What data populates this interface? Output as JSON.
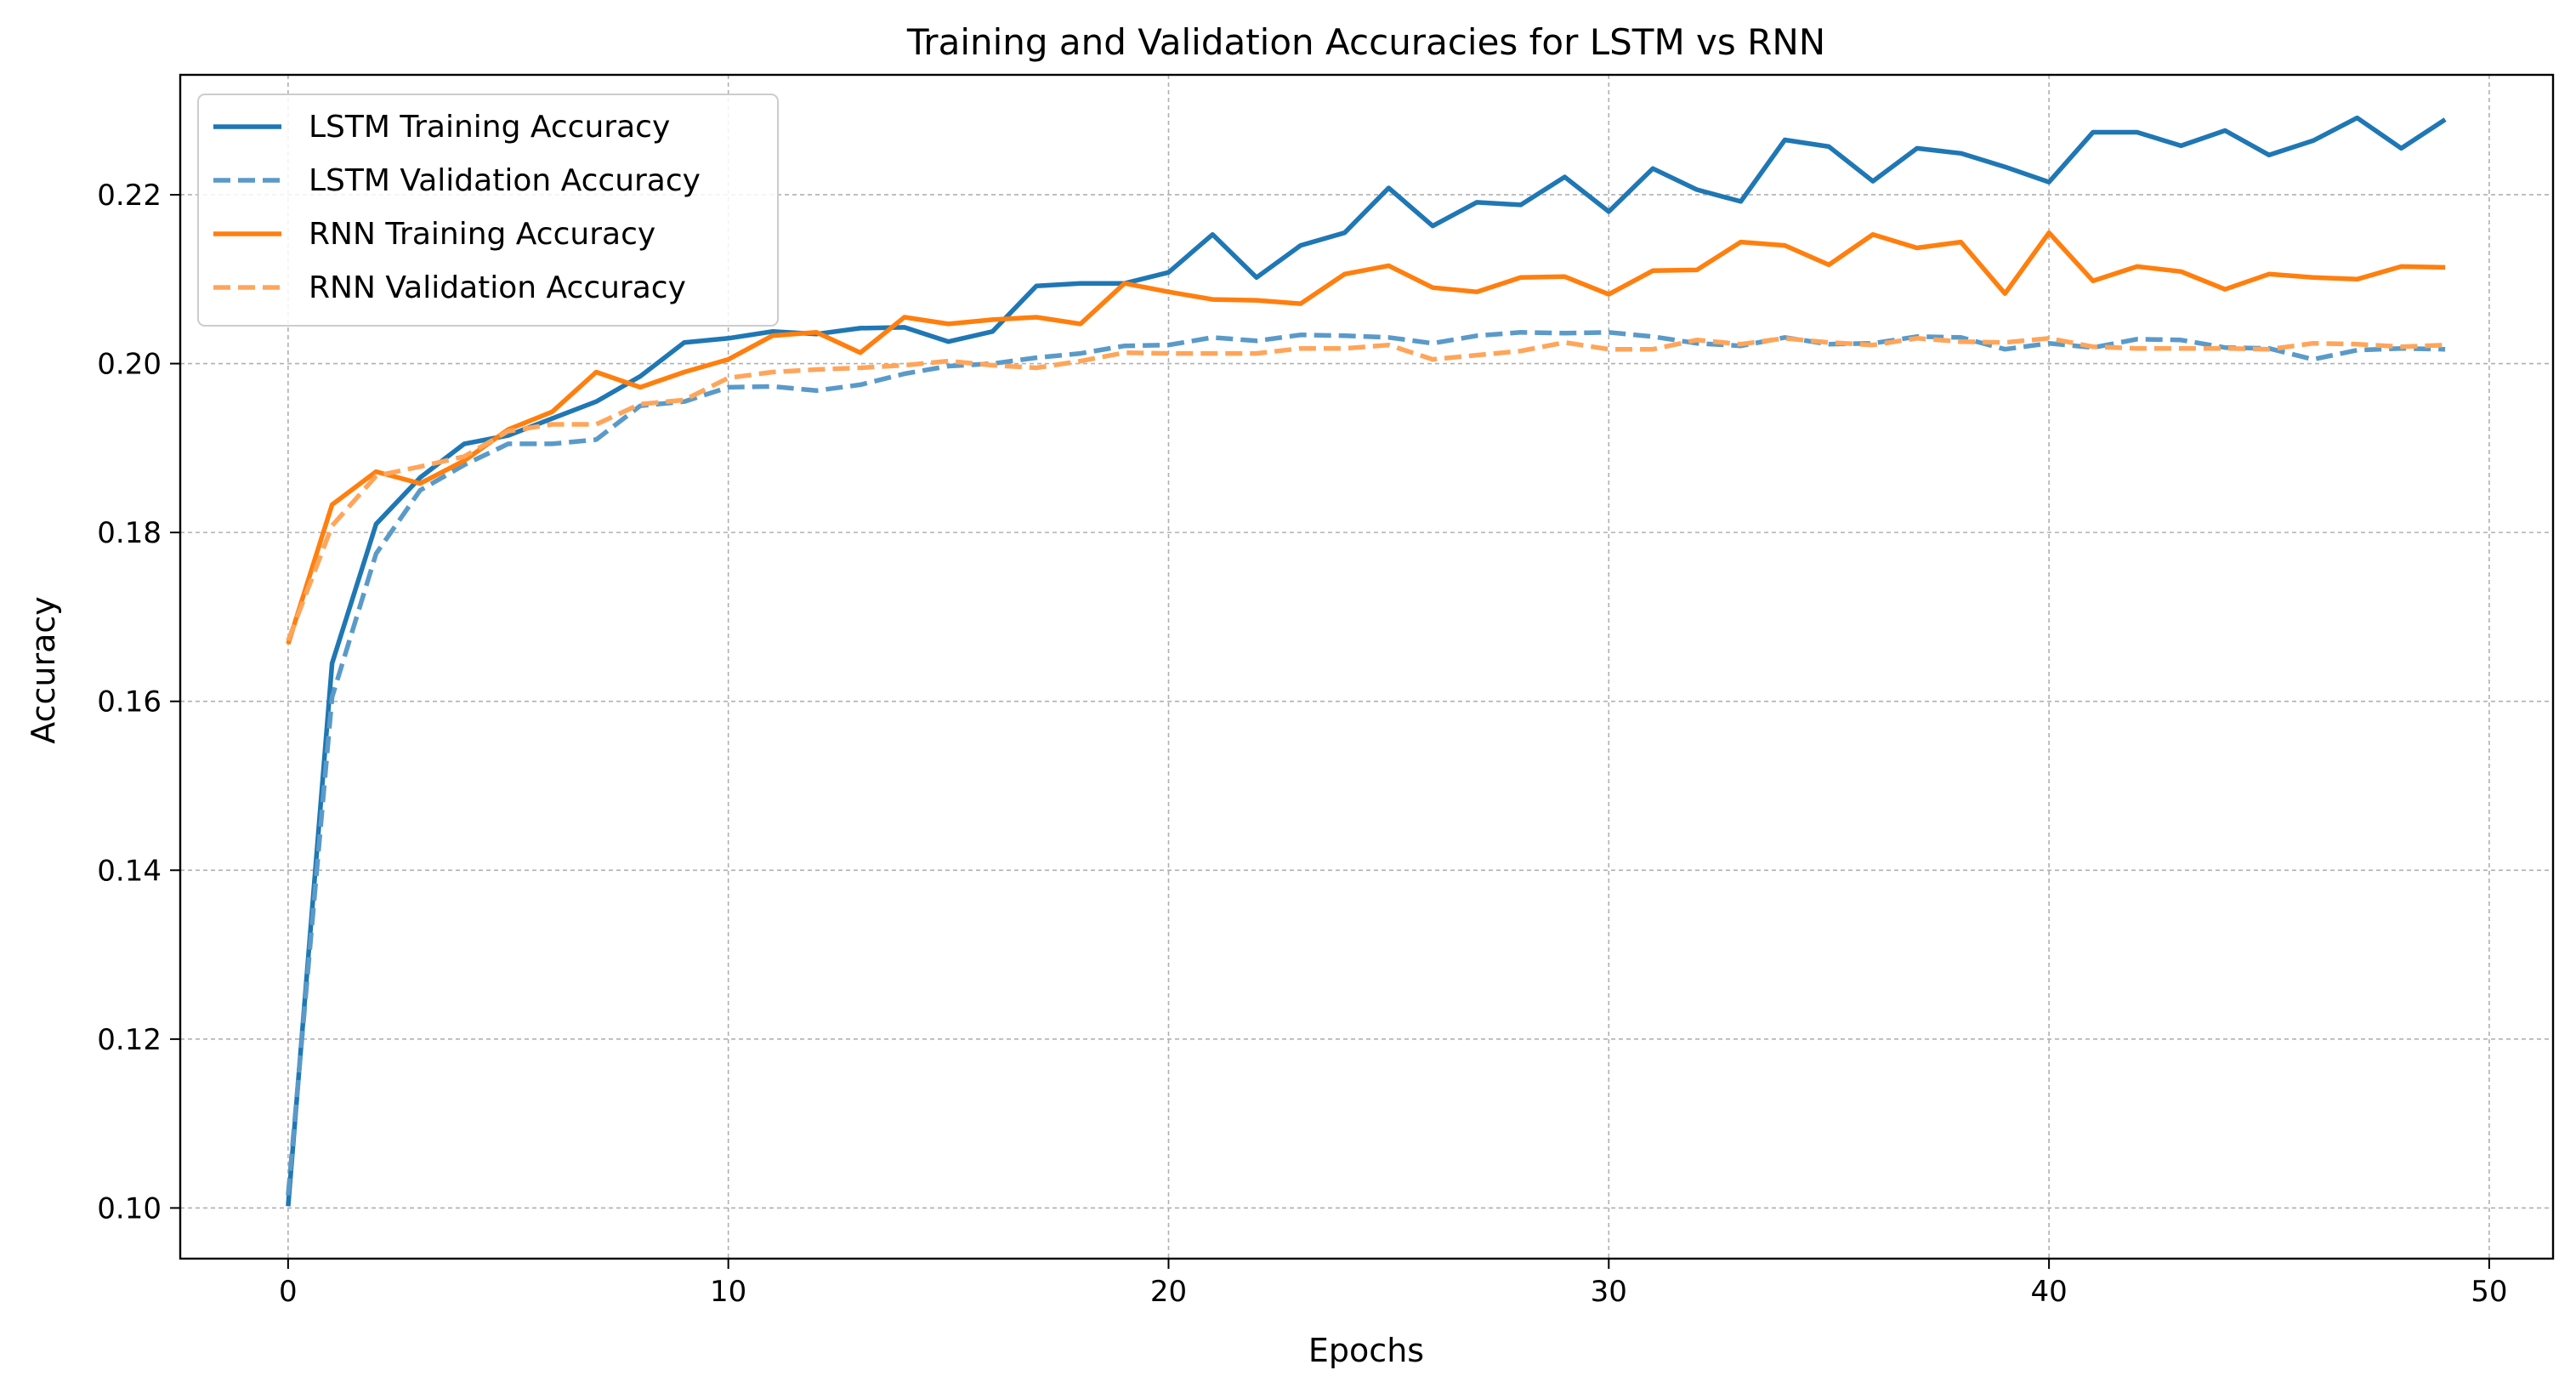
{
  "chart_data": {
    "type": "line",
    "title": "Training and Validation Accuracies for LSTM vs RNN",
    "xlabel": "Epochs",
    "ylabel": "Accuracy",
    "xlim": [
      -2.45,
      51.45
    ],
    "ylim": [
      0.094,
      0.2342
    ],
    "x_ticks": [
      0,
      10,
      20,
      30,
      40,
      50
    ],
    "y_ticks": [
      0.1,
      0.12,
      0.14,
      0.16,
      0.18,
      0.2,
      0.22
    ],
    "x_tick_labels": [
      "0",
      "10",
      "20",
      "30",
      "40",
      "50"
    ],
    "y_tick_labels": [
      "0.10",
      "0.12",
      "0.14",
      "0.16",
      "0.18",
      "0.20",
      "0.22"
    ],
    "grid": true,
    "legend_position": "top-left",
    "x": [
      0,
      1,
      2,
      3,
      4,
      5,
      6,
      7,
      8,
      9,
      10,
      11,
      12,
      13,
      14,
      15,
      16,
      17,
      18,
      19,
      20,
      21,
      22,
      23,
      24,
      25,
      26,
      27,
      28,
      29,
      30,
      31,
      32,
      33,
      34,
      35,
      36,
      37,
      38,
      39,
      40,
      41,
      42,
      43,
      44,
      45,
      46,
      47,
      48,
      49
    ],
    "series": [
      {
        "name": "LSTM Training Accuracy",
        "color": "#1f77b4",
        "style": "solid",
        "values": [
          0.1002,
          0.1645,
          0.181,
          0.1865,
          0.1905,
          0.1915,
          0.1935,
          0.1955,
          0.1985,
          0.2025,
          0.203,
          0.2038,
          0.2035,
          0.2042,
          0.2043,
          0.2026,
          0.2038,
          0.2092,
          0.2095,
          0.2095,
          0.2108,
          0.2153,
          0.2102,
          0.214,
          0.2155,
          0.2208,
          0.2163,
          0.2191,
          0.2188,
          0.2221,
          0.218,
          0.2231,
          0.2206,
          0.2192,
          0.2265,
          0.2257,
          0.2216,
          0.2255,
          0.2249,
          0.2233,
          0.2215,
          0.2274,
          0.2274,
          0.2258,
          0.2276,
          0.2247,
          0.2264,
          0.2291,
          0.2255,
          0.2289
        ]
      },
      {
        "name": "LSTM Validation Accuracy",
        "color": "#5a9ac9",
        "style": "dashed",
        "values": [
          0.1015,
          0.1605,
          0.1775,
          0.185,
          0.188,
          0.1905,
          0.1905,
          0.191,
          0.195,
          0.1955,
          0.1972,
          0.1973,
          0.1968,
          0.1975,
          0.1988,
          0.1997,
          0.2,
          0.2007,
          0.2012,
          0.2021,
          0.2022,
          0.2031,
          0.2027,
          0.2034,
          0.2033,
          0.2031,
          0.2024,
          0.2033,
          0.2037,
          0.2036,
          0.2037,
          0.2032,
          0.2024,
          0.2021,
          0.2031,
          0.2023,
          0.2024,
          0.2032,
          0.2031,
          0.2017,
          0.2024,
          0.2019,
          0.2029,
          0.2028,
          0.2019,
          0.2018,
          0.2005,
          0.2016,
          0.2018,
          0.2017
        ]
      },
      {
        "name": "RNN Training Accuracy",
        "color": "#ff7f0e",
        "style": "solid",
        "values": [
          0.1668,
          0.1833,
          0.1872,
          0.1858,
          0.1885,
          0.1922,
          0.1943,
          0.199,
          0.1972,
          0.199,
          0.2005,
          0.2033,
          0.2037,
          0.2013,
          0.2055,
          0.2047,
          0.2052,
          0.2055,
          0.2047,
          0.2095,
          0.2085,
          0.2076,
          0.2075,
          0.2071,
          0.2106,
          0.2116,
          0.209,
          0.2085,
          0.2102,
          0.2103,
          0.2082,
          0.211,
          0.2111,
          0.2144,
          0.214,
          0.2117,
          0.2153,
          0.2137,
          0.2144,
          0.2083,
          0.2155,
          0.2098,
          0.2115,
          0.2109,
          0.2088,
          0.2106,
          0.2102,
          0.21,
          0.2115,
          0.2114
        ]
      },
      {
        "name": "RNN Validation Accuracy",
        "color": "#ffa55a",
        "style": "dashed",
        "values": [
          0.1672,
          0.1808,
          0.1867,
          0.1878,
          0.189,
          0.192,
          0.1928,
          0.1928,
          0.1952,
          0.1957,
          0.1983,
          0.199,
          0.1993,
          0.1995,
          0.1998,
          0.2003,
          0.1998,
          0.1995,
          0.2003,
          0.2013,
          0.2012,
          0.2012,
          0.2012,
          0.2018,
          0.2018,
          0.2022,
          0.2005,
          0.201,
          0.2015,
          0.2025,
          0.2017,
          0.2017,
          0.2028,
          0.2023,
          0.203,
          0.2025,
          0.2022,
          0.203,
          0.2026,
          0.2025,
          0.203,
          0.202,
          0.2018,
          0.2018,
          0.2018,
          0.2017,
          0.2024,
          0.2023,
          0.202,
          0.2022
        ]
      }
    ]
  }
}
